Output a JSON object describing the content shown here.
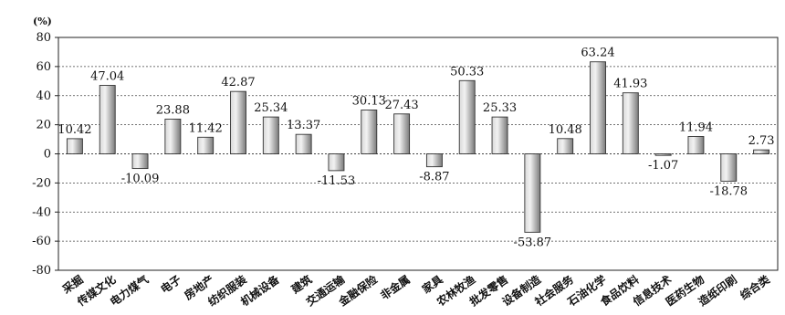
{
  "chart_data": {
    "type": "bar",
    "unit_label": "(%)",
    "categories": [
      "采掘",
      "传媒文化",
      "电力煤气",
      "电子",
      "房地产",
      "纺织服装",
      "机械设备",
      "建筑",
      "交通运输",
      "金融保险",
      "非金属",
      "家具",
      "农林牧渔",
      "批发零售",
      "设备制造",
      "社会服务",
      "石油化学",
      "食品饮料",
      "信息技术",
      "医药生物",
      "造纸印刷",
      "综合类"
    ],
    "values": [
      10.42,
      47.04,
      -10.09,
      23.88,
      11.42,
      42.87,
      25.34,
      13.37,
      -11.53,
      30.13,
      27.43,
      -8.87,
      50.33,
      25.33,
      -53.87,
      10.48,
      63.24,
      41.93,
      -1.07,
      11.94,
      -18.78,
      2.73
    ],
    "value_labels": [
      "10.42",
      "47.04",
      "-10.09",
      "23.88",
      "11.42",
      "42.87",
      "25.34",
      "13.37",
      "-11.53",
      "30.13",
      "27.43",
      "-8.87",
      "50.33",
      "25.33",
      "-53.87",
      "10.48",
      "63.24",
      "41.93",
      "-1.07",
      "11.94",
      "-18.78",
      "2.73"
    ],
    "yticks": [
      "80",
      "60",
      "40",
      "20",
      "0",
      "-20",
      "-40",
      "-60",
      "-80"
    ],
    "ylim": [
      -80,
      80
    ],
    "grid": true,
    "colors": {
      "bar_light": "#e2e2e2",
      "bar_dark": "#6e6e6e",
      "grid": "#444444",
      "axis": "#222222"
    }
  }
}
